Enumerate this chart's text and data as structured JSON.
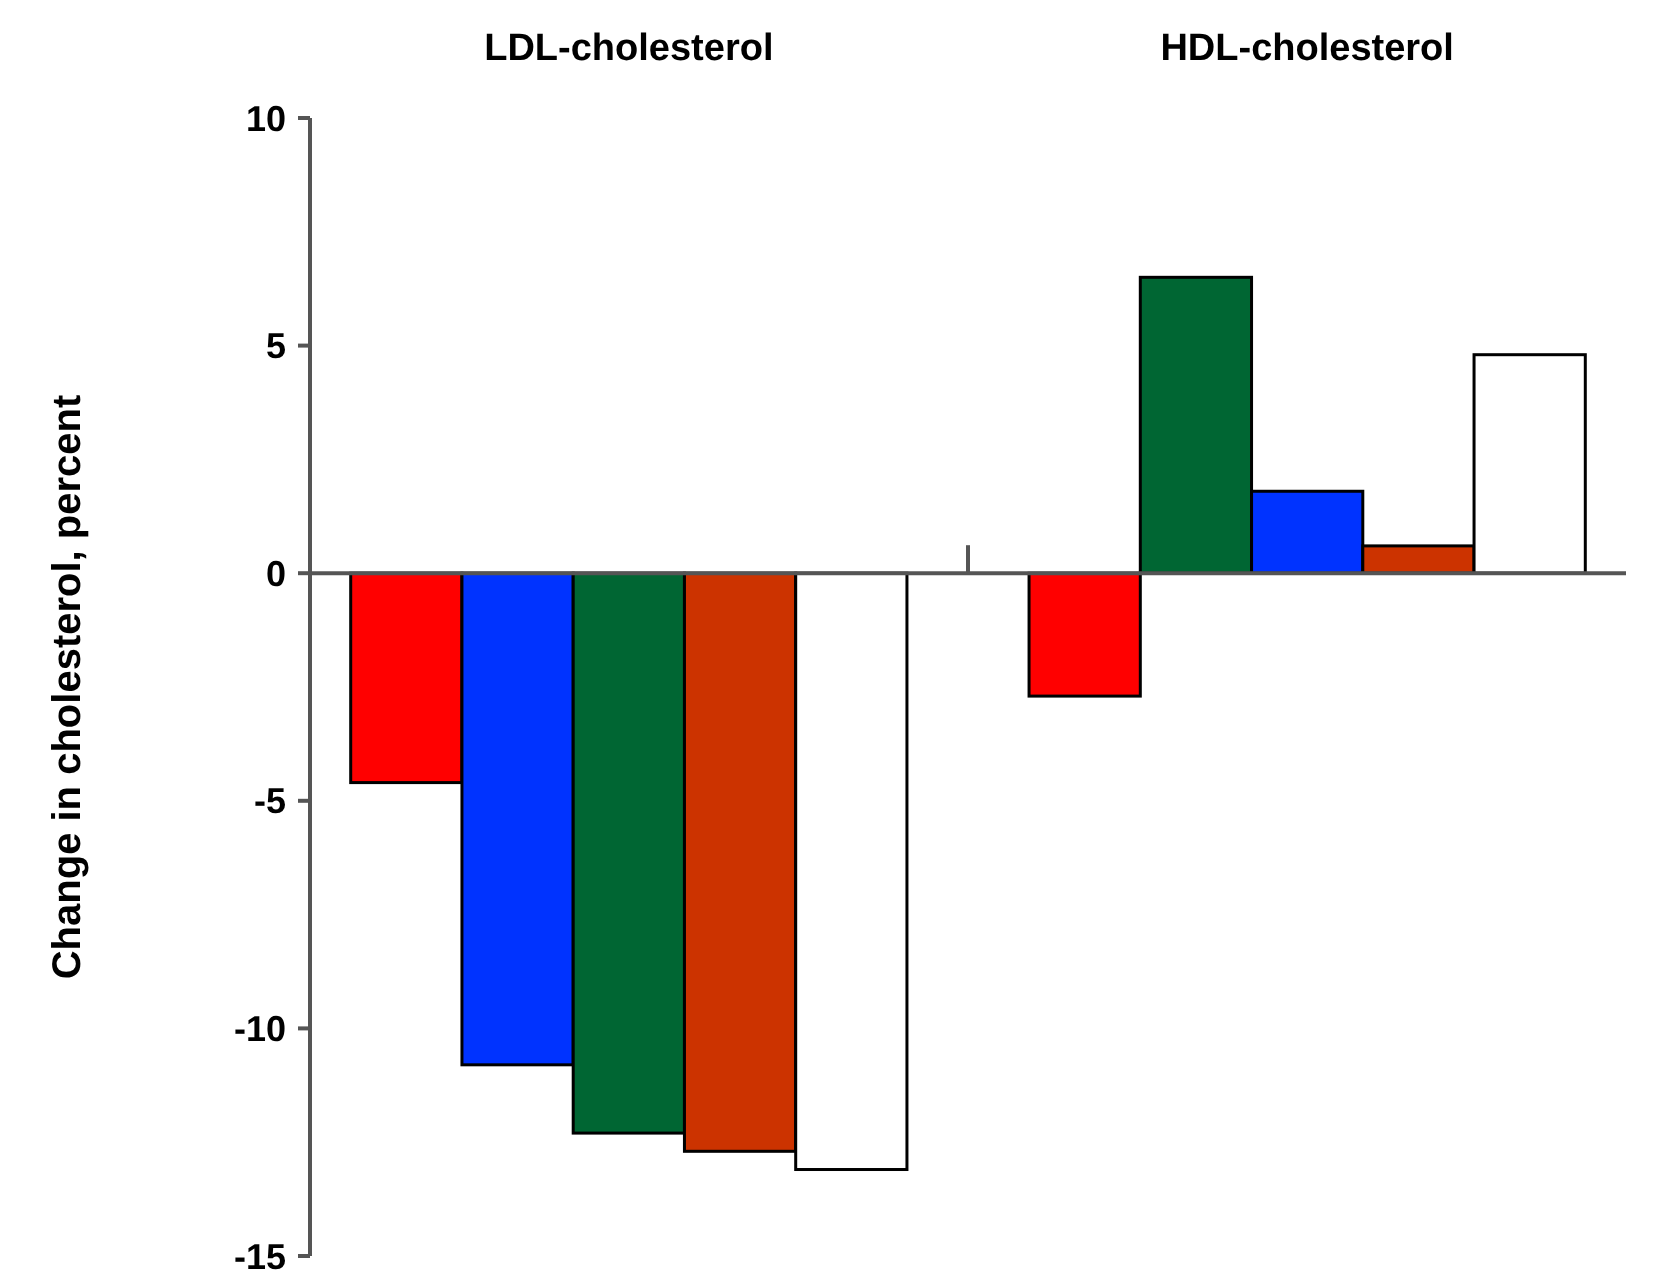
{
  "chart_data": {
    "type": "bar",
    "ylabel": "Change in cholesterol, percent",
    "categories": [
      "LDL-cholesterol",
      "HDL-cholesterol"
    ],
    "series": [
      {
        "colors": [
          "#ff0000",
          "#ff0000"
        ],
        "values": [
          -4.6,
          -2.7
        ]
      },
      {
        "colors": [
          "#0033ff",
          "#006633"
        ],
        "values": [
          -10.8,
          6.5
        ]
      },
      {
        "colors": [
          "#006633",
          "#0033ff"
        ],
        "values": [
          -12.3,
          1.8
        ]
      },
      {
        "colors": [
          "#cc3300",
          "#cc3300"
        ],
        "values": [
          -12.7,
          0.6
        ]
      },
      {
        "colors": [
          "#ffffff",
          "#ffffff"
        ],
        "values": [
          -13.1,
          4.8
        ]
      }
    ],
    "ylim": [
      -15,
      10
    ],
    "yticks": [
      -15,
      -10,
      -5,
      0,
      5,
      10
    ]
  }
}
